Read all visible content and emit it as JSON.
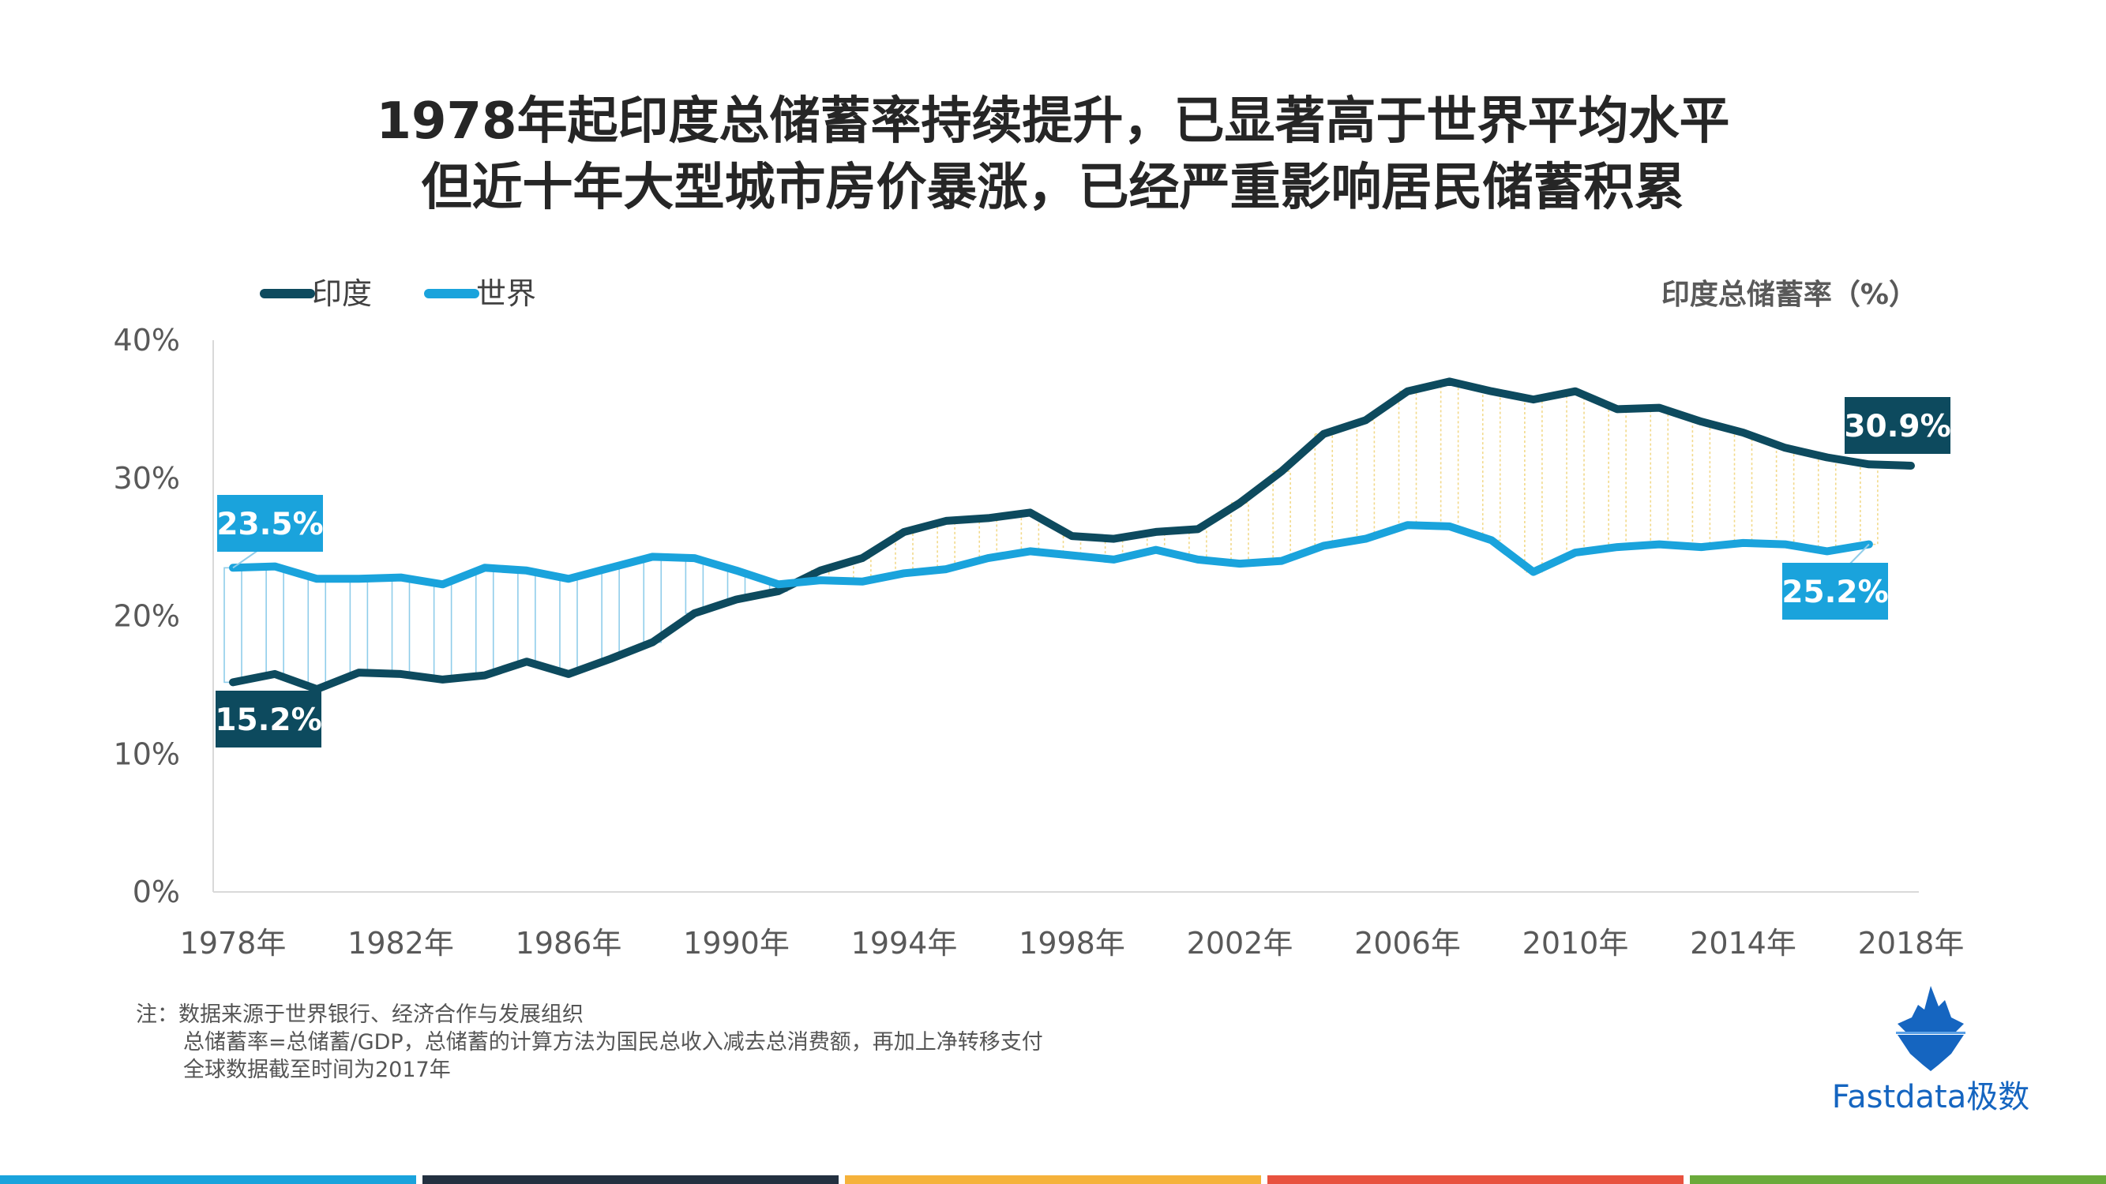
{
  "title": {
    "line1": "1978年起印度总储蓄率持续提升，已显著高于世界平均水平",
    "line2": "但近十年大型城市房价暴涨，已经严重影响居民储蓄积累"
  },
  "chart_data": {
    "type": "line",
    "ylabel": "印度总储蓄率（%）",
    "ylim": [
      0,
      40
    ],
    "yticks": [
      "0%",
      "10%",
      "20%",
      "30%",
      "40%"
    ],
    "ytick_values": [
      0,
      10,
      20,
      30,
      40
    ],
    "xticks": [
      "1978年",
      "1982年",
      "1986年",
      "1990年",
      "1994年",
      "1998年",
      "2002年",
      "2006年",
      "2010年",
      "2014年",
      "2018年"
    ],
    "xtick_values": [
      1978,
      1982,
      1986,
      1990,
      1994,
      1998,
      2002,
      2006,
      2010,
      2014,
      2018
    ],
    "xlim": [
      1978,
      2018
    ],
    "legend": [
      "印度",
      "世界"
    ],
    "series": [
      {
        "name": "印度",
        "color": "#0d4a5e",
        "years": [
          1978,
          1979,
          1980,
          1981,
          1982,
          1983,
          1984,
          1985,
          1986,
          1987,
          1988,
          1989,
          1990,
          1991,
          1992,
          1993,
          1994,
          1995,
          1996,
          1997,
          1998,
          1999,
          2000,
          2001,
          2002,
          2003,
          2004,
          2005,
          2006,
          2007,
          2008,
          2009,
          2010,
          2011,
          2012,
          2013,
          2014,
          2015,
          2016,
          2017,
          2018
        ],
        "values": [
          15.2,
          15.8,
          14.7,
          15.9,
          15.8,
          15.4,
          15.7,
          16.7,
          15.8,
          16.9,
          18.1,
          20.2,
          21.2,
          21.8,
          23.3,
          24.2,
          26.1,
          26.9,
          27.1,
          27.5,
          25.8,
          25.6,
          26.1,
          26.3,
          28.2,
          30.5,
          33.2,
          34.2,
          36.3,
          37.0,
          36.3,
          35.7,
          36.3,
          35.0,
          35.1,
          34.1,
          33.3,
          32.2,
          31.5,
          31.0,
          30.9
        ],
        "start_label": "15.2%",
        "end_label": "30.9%"
      },
      {
        "name": "世界",
        "color": "#1aa3dc",
        "years": [
          1978,
          1979,
          1980,
          1981,
          1982,
          1983,
          1984,
          1985,
          1986,
          1987,
          1988,
          1989,
          1990,
          1991,
          1992,
          1993,
          1994,
          1995,
          1996,
          1997,
          1998,
          1999,
          2000,
          2001,
          2002,
          2003,
          2004,
          2005,
          2006,
          2007,
          2008,
          2009,
          2010,
          2011,
          2012,
          2013,
          2014,
          2015,
          2016,
          2017
        ],
        "values": [
          23.5,
          23.6,
          22.7,
          22.7,
          22.8,
          22.3,
          23.5,
          23.3,
          22.7,
          23.5,
          24.3,
          24.2,
          23.3,
          22.3,
          22.6,
          22.5,
          23.1,
          23.4,
          24.2,
          24.7,
          24.4,
          24.1,
          24.8,
          24.1,
          23.8,
          24.0,
          25.1,
          25.6,
          26.6,
          26.5,
          25.5,
          23.2,
          24.6,
          25.0,
          25.2,
          25.0,
          25.3,
          25.2,
          24.7,
          25.2
        ],
        "start_label": "23.5%",
        "end_label": "25.2%"
      }
    ]
  },
  "notes": {
    "line1": "注：数据来源于世界银行、经济合作与发展组织",
    "line2": "总储蓄率=总储蓄/GDP，总储蓄的计算方法为国民总收入减去总消费额，再加上净转移支付",
    "line3": "全球数据截至时间为2017年"
  },
  "logo": {
    "text": "Fastdata极数"
  },
  "footer_colors": [
    "#1aa3dc",
    "#233040",
    "#f5b23b",
    "#e8523f",
    "#6aaa3b"
  ]
}
